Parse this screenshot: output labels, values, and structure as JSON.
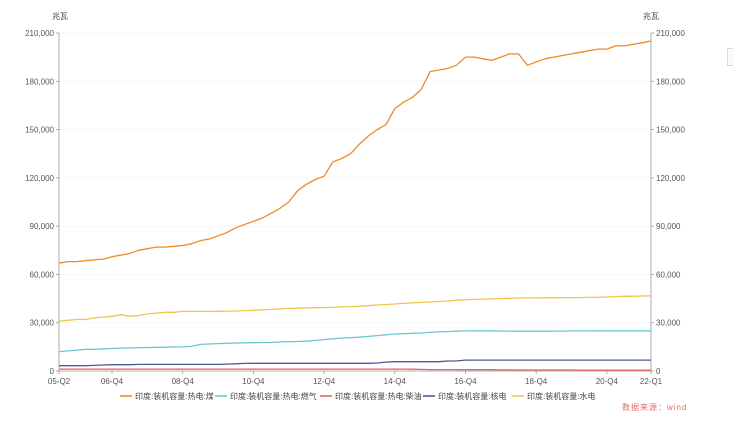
{
  "chart_data": {
    "type": "line",
    "y_unit_left": "兆瓦",
    "y_unit_right": "兆瓦",
    "ylim": [
      0,
      210000
    ],
    "yticks": [
      0,
      30000,
      60000,
      90000,
      120000,
      150000,
      180000,
      210000
    ],
    "ytick_labels": [
      "0",
      "30,000",
      "60,000",
      "90,000",
      "120,000",
      "150,000",
      "180,000",
      "210,000"
    ],
    "categories": [
      "05-Q2",
      "05-Q3",
      "05-Q4",
      "06-Q1",
      "06-Q2",
      "06-Q3",
      "06-Q4",
      "07-Q1",
      "07-Q2",
      "07-Q3",
      "07-Q4",
      "08-Q1",
      "08-Q2",
      "08-Q3",
      "08-Q4",
      "09-Q1",
      "09-Q2",
      "09-Q3",
      "09-Q4",
      "10-Q1",
      "10-Q2",
      "10-Q3",
      "10-Q4",
      "11-Q1",
      "11-Q2",
      "11-Q3",
      "11-Q4",
      "12-Q1",
      "12-Q2",
      "12-Q3",
      "12-Q4",
      "13-Q1",
      "13-Q2",
      "13-Q3",
      "13-Q4",
      "14-Q1",
      "14-Q2",
      "14-Q3",
      "14-Q4",
      "15-Q1",
      "15-Q2",
      "15-Q3",
      "15-Q4",
      "16-Q1",
      "16-Q2",
      "16-Q3",
      "16-Q4",
      "17-Q1",
      "17-Q2",
      "17-Q3",
      "17-Q4",
      "18-Q1",
      "18-Q2",
      "18-Q3",
      "18-Q4",
      "19-Q1",
      "19-Q2",
      "19-Q3",
      "19-Q4",
      "20-Q1",
      "20-Q2",
      "20-Q3",
      "20-Q4",
      "21-Q1",
      "21-Q2",
      "21-Q3",
      "21-Q4",
      "22-Q1"
    ],
    "xtick_labels": [
      "05-Q2",
      "06-Q4",
      "08-Q4",
      "10-Q4",
      "12-Q4",
      "14-Q4",
      "16-Q4",
      "18-Q4",
      "20-Q4",
      "22-Q1"
    ],
    "grid": true,
    "legend_position": "bottom",
    "series": [
      {
        "name": "印度:装机容量:热电:煤",
        "color": "#f08a24",
        "values": [
          67000,
          68000,
          68000,
          68500,
          69000,
          69500,
          71000,
          72000,
          73000,
          75000,
          76000,
          77000,
          77000,
          77500,
          78000,
          79000,
          81000,
          82000,
          84000,
          86000,
          89000,
          91000,
          93000,
          95000,
          98000,
          101000,
          105000,
          112000,
          116000,
          119000,
          121000,
          130000,
          132000,
          135000,
          141000,
          146000,
          150000,
          153000,
          163000,
          167000,
          170000,
          175000,
          186000,
          187000,
          188000,
          190000,
          195000,
          195000,
          194000,
          193000,
          195000,
          197000,
          197000,
          190000,
          192000,
          194000,
          195000,
          196000,
          197000,
          198000,
          199000,
          200000,
          200000,
          202000,
          202000,
          203000,
          204000,
          205000
        ]
      },
      {
        "name": "印度:装机容量:热电:燃气",
        "color": "#6cc7cf",
        "values": [
          12000,
          12500,
          13000,
          13500,
          13500,
          13800,
          14000,
          14200,
          14300,
          14500,
          14600,
          14700,
          14800,
          14900,
          15000,
          15300,
          16500,
          16800,
          17000,
          17200,
          17400,
          17500,
          17600,
          17700,
          17800,
          18000,
          18200,
          18300,
          18500,
          19000,
          19500,
          20000,
          20500,
          20700,
          21000,
          21500,
          22000,
          22500,
          23000,
          23200,
          23400,
          23600,
          24000,
          24300,
          24500,
          24700,
          24900,
          25000,
          25000,
          25000,
          24800,
          24800,
          24700,
          24700,
          24700,
          24700,
          24800,
          24800,
          24900,
          24900,
          24900,
          25000,
          25000,
          25000,
          25000,
          25000,
          25000,
          25000
        ]
      },
      {
        "name": "印度:装机容量:热电:柴油",
        "color": "#e86262",
        "values": [
          1200,
          1200,
          1200,
          1200,
          1200,
          1200,
          1200,
          1200,
          1200,
          1200,
          1200,
          1200,
          1200,
          1200,
          1200,
          1200,
          1200,
          1200,
          1200,
          1200,
          1200,
          1200,
          1200,
          1200,
          1200,
          1200,
          1200,
          1200,
          1200,
          1200,
          1200,
          1200,
          1200,
          1200,
          1200,
          1200,
          1200,
          1200,
          1200,
          1200,
          1100,
          1000,
          900,
          900,
          900,
          900,
          800,
          800,
          800,
          800,
          700,
          700,
          600,
          600,
          600,
          600,
          600,
          600,
          600,
          550,
          500,
          500,
          500,
          500,
          500,
          500,
          500,
          500
        ]
      },
      {
        "name": "印度:装机容量:核电",
        "color": "#4a5a9c",
        "values": [
          3300,
          3300,
          3300,
          3300,
          3500,
          3700,
          3900,
          3900,
          3900,
          4100,
          4100,
          4100,
          4100,
          4100,
          4100,
          4100,
          4100,
          4100,
          4100,
          4300,
          4500,
          4700,
          4800,
          4800,
          4800,
          4800,
          4800,
          4800,
          4800,
          4800,
          4800,
          4800,
          4800,
          4800,
          4800,
          4800,
          5000,
          5500,
          5800,
          5800,
          5800,
          5800,
          5800,
          5800,
          6200,
          6300,
          6800,
          6800,
          6800,
          6800,
          6800,
          6800,
          6800,
          6800,
          6800,
          6800,
          6800,
          6800,
          6800,
          6800,
          6800,
          6800,
          6800,
          6800,
          6800,
          6800,
          6800,
          6800
        ]
      },
      {
        "name": "印度:装机容量:水电",
        "color": "#f2c44d",
        "values": [
          31000,
          31500,
          32000,
          32000,
          33000,
          33500,
          34000,
          35000,
          34000,
          34500,
          35500,
          36000,
          36500,
          36500,
          37000,
          37000,
          37000,
          37000,
          37100,
          37200,
          37300,
          37500,
          37700,
          38000,
          38300,
          38600,
          38900,
          39000,
          39200,
          39300,
          39400,
          39500,
          39800,
          40000,
          40300,
          40600,
          41000,
          41300,
          41600,
          42000,
          42300,
          42600,
          42900,
          43200,
          43500,
          44000,
          44200,
          44500,
          44700,
          44800,
          45000,
          45200,
          45300,
          45400,
          45400,
          45500,
          45500,
          45600,
          45600,
          45600,
          45700,
          45800,
          46000,
          46200,
          46400,
          46500,
          46600,
          46700
        ]
      }
    ]
  },
  "watermark": "数据来源：wind"
}
